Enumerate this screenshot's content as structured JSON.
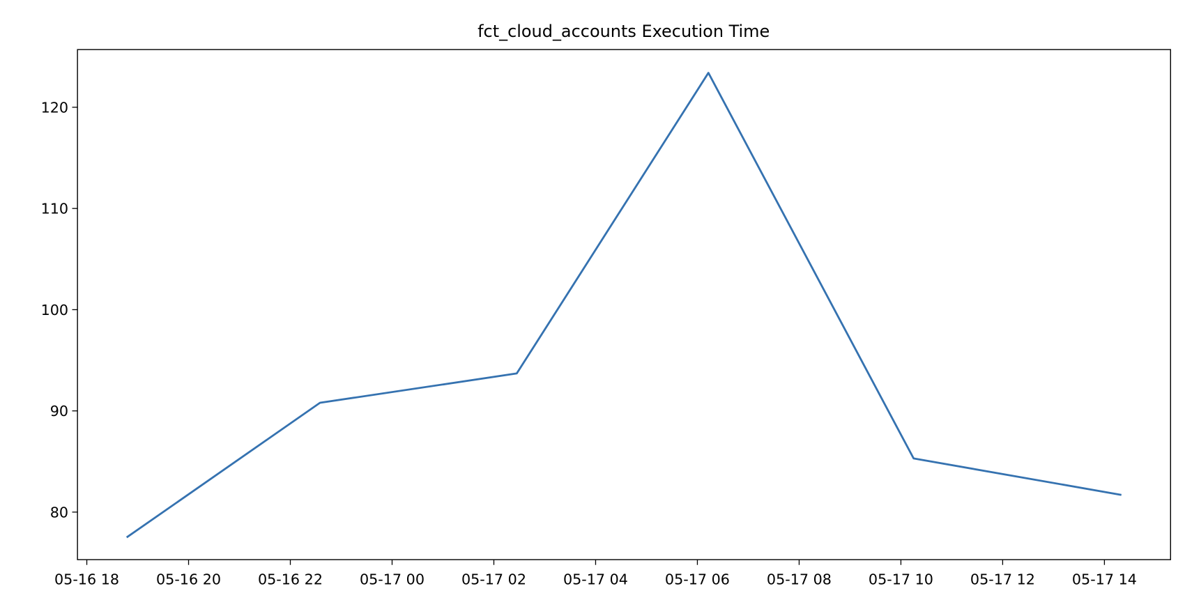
{
  "chart_data": {
    "type": "line",
    "title": "fct_cloud_accounts Execution Time",
    "xlabel": "",
    "ylabel": "",
    "x": [
      "05-16 18:47",
      "05-16 22:35",
      "05-17 02:27",
      "05-17 06:13",
      "05-17 10:15",
      "05-17 14:20"
    ],
    "series": [
      {
        "values": [
          77.5,
          90.8,
          93.7,
          123.4,
          85.3,
          81.7
        ],
        "color": "#3572b0"
      }
    ],
    "xlim": [
      "05-16 17:49",
      "05-17 15:18"
    ],
    "ylim": [
      75.3,
      125.7
    ],
    "xticks": [
      "05-16 18",
      "05-16 20",
      "05-16 22",
      "05-17 00",
      "05-17 02",
      "05-17 04",
      "05-17 06",
      "05-17 08",
      "05-17 10",
      "05-17 12",
      "05-17 14"
    ],
    "yticks": [
      "80",
      "90",
      "100",
      "110",
      "120"
    ],
    "grid": false,
    "legend": "none"
  }
}
